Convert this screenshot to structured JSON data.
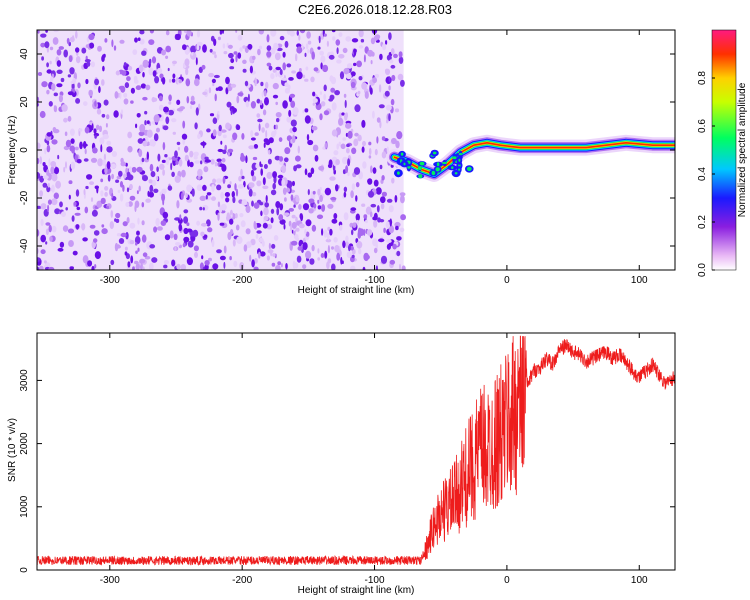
{
  "title": "C2E6.2026.018.12.28.R03",
  "colors": {
    "snr_line": "#ee1c1c",
    "scatter": "#7a33f0",
    "axes": "#000000"
  },
  "chart_data": [
    {
      "type": "heatmap",
      "name": "spectrogram",
      "xlabel": "Height of straight line (km)",
      "ylabel": "Frequency (Hz)",
      "xlim": [
        -355,
        127
      ],
      "ylim": [
        -50,
        50
      ],
      "xticks": [
        -300,
        -200,
        -100,
        0,
        100
      ],
      "yticks": [
        -40,
        -20,
        0,
        20,
        40
      ],
      "noise_region_x": [
        -355,
        -78
      ],
      "signal_track": {
        "x": [
          -85,
          -75,
          -65,
          -55,
          -45,
          -35,
          -25,
          -15,
          -5,
          10,
          30,
          60,
          90,
          110,
          127
        ],
        "freq": [
          -3,
          -5,
          -8,
          -10,
          -6,
          -1,
          2,
          3,
          2,
          1,
          1,
          1,
          3,
          2,
          2
        ]
      },
      "colorbar": {
        "label": "Normalized spectral amplitude",
        "range": [
          0.0,
          1.0
        ],
        "ticks": [
          0.0,
          0.2,
          0.4,
          0.6,
          0.8
        ]
      }
    },
    {
      "type": "line",
      "name": "snr",
      "xlabel": "Height of straight line (km)",
      "ylabel": "SNR (10 * v/v)",
      "xlim": [
        -355,
        127
      ],
      "ylim": [
        0,
        3750
      ],
      "xticks": [
        -300,
        -200,
        -100,
        0,
        100
      ],
      "yticks": [
        0,
        1000,
        2000,
        3000
      ],
      "series": [
        {
          "name": "SNR",
          "x": [
            -355,
            -300,
            -250,
            -200,
            -150,
            -100,
            -65,
            -60,
            -55,
            -50,
            -45,
            -40,
            -35,
            -30,
            -25,
            -20,
            -15,
            -10,
            -5,
            0,
            5,
            10,
            15,
            20,
            25,
            30,
            35,
            40,
            45,
            50,
            55,
            60,
            65,
            70,
            75,
            80,
            85,
            90,
            95,
            100,
            105,
            110,
            115,
            120,
            127
          ],
          "values": [
            150,
            150,
            150,
            150,
            150,
            150,
            150,
            400,
            700,
            900,
            1000,
            1100,
            1300,
            1500,
            1700,
            1900,
            1900,
            2000,
            2100,
            2300,
            2500,
            2700,
            2900,
            3150,
            3200,
            3350,
            3250,
            3500,
            3550,
            3450,
            3400,
            3300,
            3350,
            3400,
            3450,
            3350,
            3400,
            3300,
            3150,
            3050,
            3150,
            3250,
            3100,
            2950,
            3050
          ]
        }
      ]
    }
  ]
}
